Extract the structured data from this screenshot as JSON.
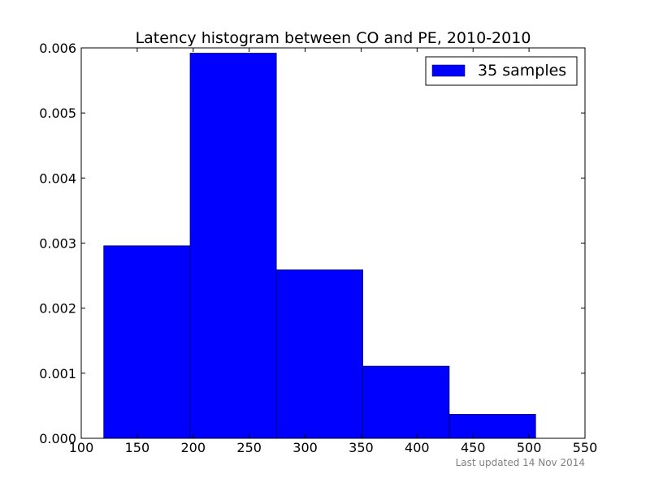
{
  "chart_data": {
    "type": "bar",
    "title": "Latency histogram between CO and PE, 2010-2010",
    "xlabel": "",
    "ylabel": "",
    "xlim": [
      100,
      550
    ],
    "ylim": [
      0,
      0.006
    ],
    "x_ticks": [
      "100",
      "150",
      "200",
      "250",
      "300",
      "350",
      "400",
      "450",
      "500",
      "550"
    ],
    "y_ticks": [
      "0.000",
      "0.001",
      "0.002",
      "0.003",
      "0.004",
      "0.005",
      "0.006"
    ],
    "bins": [
      {
        "start": 120,
        "end": 197.2,
        "value": 0.00296
      },
      {
        "start": 197.2,
        "end": 274.4,
        "value": 0.00592
      },
      {
        "start": 274.4,
        "end": 351.6,
        "value": 0.00259
      },
      {
        "start": 351.6,
        "end": 428.8,
        "value": 0.00111
      },
      {
        "start": 428.8,
        "end": 506,
        "value": 0.00037
      }
    ],
    "bar_color": "#0000ff",
    "edge_color": "#000000",
    "grid": false,
    "legend": {
      "label": "35 samples",
      "placement": "top-right"
    }
  },
  "footer": {
    "text": "Last updated 14 Nov 2014"
  }
}
